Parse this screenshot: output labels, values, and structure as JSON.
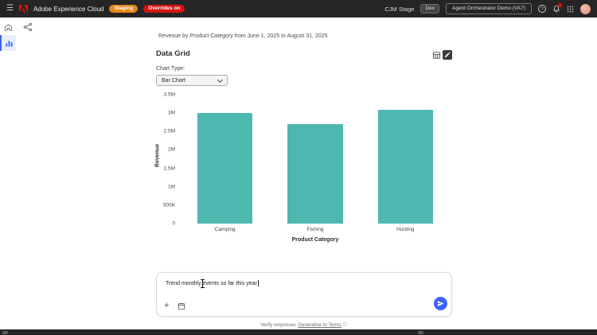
{
  "topbar": {
    "product_name": "Adobe Experience Cloud",
    "staging_badge": {
      "label": "Staging",
      "color": "#E68619"
    },
    "overrides_badge": {
      "label": "Overrides on",
      "color": "#D31510"
    },
    "env_label": "CJM Stage",
    "dev_badge": "Dev",
    "org_selector": "Agent Orchestrator Demo (VA7)"
  },
  "sidebar": {
    "accent_color": "#3B63FB"
  },
  "main": {
    "summary_text": "Revenue by Product Category from June 1, 2025 to August 31, 2025",
    "card_title": "Data Grid",
    "chart_type_label": "Chart Type:",
    "chart_type_value": "Bar Chart"
  },
  "chart_data": {
    "type": "bar",
    "title": "Revenue by Product Category from June 1, 2025 to August 31, 2025",
    "categories": [
      "Camping",
      "Fishing",
      "Hunting"
    ],
    "values": [
      3000000,
      2700000,
      3080000
    ],
    "xlabel": "Product Category",
    "ylabel": "Revenue",
    "ylim": [
      0,
      3500000
    ],
    "yticks": [
      "0",
      "500K",
      "1M",
      "1.5M",
      "2M",
      "2.5M",
      "3M",
      "3.5M"
    ],
    "grid": false,
    "legend": false,
    "bar_color": "#4DB8B0"
  },
  "composer": {
    "input_text": "Trend monthly events so far this year",
    "send_color": "#3B63FB"
  },
  "footer": {
    "verify_text": "Verify responses",
    "terms_link": "Generative AI Terms"
  }
}
